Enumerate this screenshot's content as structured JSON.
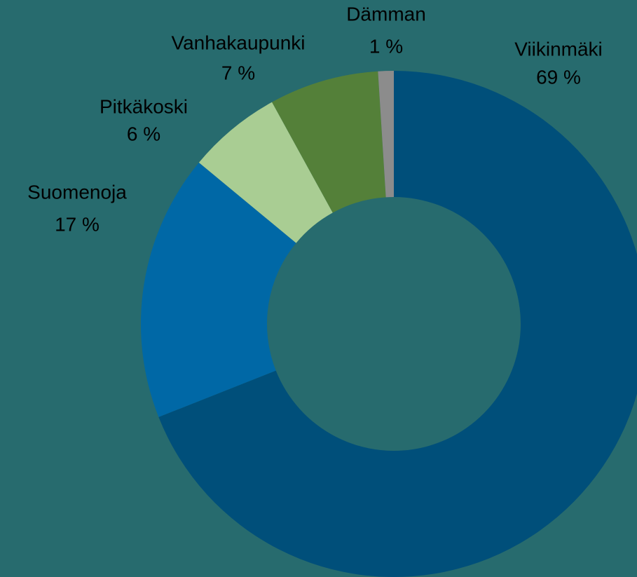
{
  "chart_data": {
    "type": "donut",
    "categories": [
      "Viikinmäki",
      "Suomenoja",
      "Pitkäkoski",
      "Vanhakaupunki",
      "Dämman"
    ],
    "values": [
      69,
      17,
      6,
      7,
      1
    ],
    "value_labels": [
      "69 %",
      "17 %",
      "6 %",
      "7 %",
      "1 %"
    ],
    "colors": [
      "#004f7a",
      "#0068a6",
      "#a9cd93",
      "#548039",
      "#8c8c8c"
    ]
  }
}
